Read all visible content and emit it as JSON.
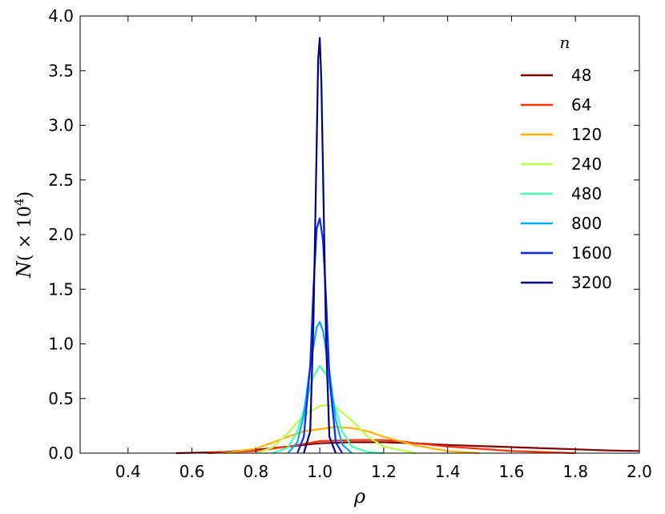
{
  "chart_data": {
    "type": "line",
    "xlabel": "ρ",
    "ylabel_main": "N",
    "ylabel_unit_prefix": "( × 10",
    "ylabel_unit_exponent": "4",
    "ylabel_unit_suffix": ")",
    "xlim": [
      0.25,
      2.0
    ],
    "ylim": [
      0.0,
      4.0
    ],
    "xticks": [
      "0.4",
      "0.6",
      "0.8",
      "1.0",
      "1.2",
      "1.4",
      "1.6",
      "1.8",
      "2.0"
    ],
    "xtick_values": [
      0.4,
      0.6,
      0.8,
      1.0,
      1.2,
      1.4,
      1.6,
      1.8,
      2.0
    ],
    "yticks": [
      "0.0",
      "0.5",
      "1.0",
      "1.5",
      "2.0",
      "2.5",
      "3.0",
      "3.5",
      "4.0"
    ],
    "ytick_values": [
      0.0,
      0.5,
      1.0,
      1.5,
      2.0,
      2.5,
      3.0,
      3.5,
      4.0
    ],
    "grid": false,
    "legend_title": "n",
    "legend_position": "top-right",
    "series": [
      {
        "name": "48",
        "color": "#7f0000",
        "x": [
          0.55,
          0.7,
          0.8,
          0.9,
          1.0,
          1.1,
          1.2,
          1.3,
          1.4,
          1.5,
          1.6,
          1.7,
          1.8,
          1.9,
          2.0
        ],
        "y": [
          0.0,
          0.01,
          0.03,
          0.06,
          0.09,
          0.1,
          0.1,
          0.09,
          0.075,
          0.065,
          0.055,
          0.045,
          0.035,
          0.025,
          0.02
        ]
      },
      {
        "name": "64",
        "color": "#ff3300",
        "x": [
          0.65,
          0.8,
          0.9,
          1.0,
          1.1,
          1.2,
          1.25,
          1.3,
          1.4,
          1.5,
          1.6,
          1.7,
          1.8
        ],
        "y": [
          0.0,
          0.02,
          0.06,
          0.11,
          0.12,
          0.12,
          0.11,
          0.09,
          0.06,
          0.04,
          0.02,
          0.01,
          0.0
        ]
      },
      {
        "name": "120",
        "color": "#ffb000",
        "x": [
          0.7,
          0.8,
          0.9,
          0.95,
          1.0,
          1.05,
          1.1,
          1.15,
          1.2,
          1.3,
          1.4,
          1.5
        ],
        "y": [
          0.0,
          0.04,
          0.15,
          0.2,
          0.22,
          0.24,
          0.23,
          0.2,
          0.15,
          0.07,
          0.02,
          0.0
        ]
      },
      {
        "name": "240",
        "color": "#b8ff48",
        "x": [
          0.8,
          0.85,
          0.9,
          0.95,
          1.0,
          1.02,
          1.05,
          1.1,
          1.15,
          1.2,
          1.3
        ],
        "y": [
          0.0,
          0.05,
          0.18,
          0.35,
          0.43,
          0.44,
          0.42,
          0.3,
          0.15,
          0.06,
          0.0
        ]
      },
      {
        "name": "480",
        "color": "#48ffb0",
        "x": [
          0.85,
          0.9,
          0.93,
          0.96,
          0.98,
          1.0,
          1.02,
          1.04,
          1.07,
          1.1,
          1.15,
          1.2
        ],
        "y": [
          0.0,
          0.05,
          0.2,
          0.5,
          0.7,
          0.8,
          0.72,
          0.5,
          0.2,
          0.06,
          0.01,
          0.0
        ]
      },
      {
        "name": "800",
        "color": "#00a8ff",
        "x": [
          0.9,
          0.93,
          0.95,
          0.97,
          0.99,
          1.0,
          1.01,
          1.03,
          1.05,
          1.07,
          1.1
        ],
        "y": [
          0.0,
          0.1,
          0.35,
          0.8,
          1.15,
          1.2,
          1.12,
          0.75,
          0.3,
          0.08,
          0.0
        ]
      },
      {
        "name": "1600",
        "color": "#0028ff",
        "x": [
          0.93,
          0.95,
          0.97,
          0.98,
          0.99,
          1.0,
          1.01,
          1.02,
          1.03,
          1.05,
          1.07
        ],
        "y": [
          0.0,
          0.15,
          0.8,
          1.5,
          2.05,
          2.15,
          1.95,
          1.4,
          0.7,
          0.1,
          0.0
        ]
      },
      {
        "name": "3200",
        "color": "#00007f",
        "x": [
          0.95,
          0.97,
          0.98,
          0.99,
          0.995,
          1.0,
          1.005,
          1.01,
          1.02,
          1.03,
          1.05
        ],
        "y": [
          0.0,
          0.2,
          1.2,
          2.8,
          3.6,
          3.8,
          3.4,
          2.6,
          1.0,
          0.15,
          0.0
        ]
      }
    ]
  }
}
